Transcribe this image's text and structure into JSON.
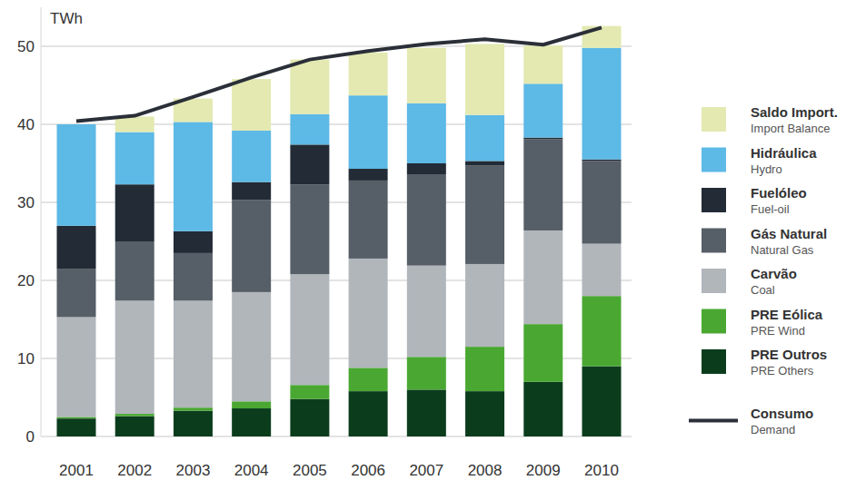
{
  "chart_data": {
    "type": "bar",
    "stacked": true,
    "grid": true,
    "legend": "right",
    "y_label": "TWh",
    "categories": [
      "2001",
      "2002",
      "2003",
      "2004",
      "2005",
      "2006",
      "2007",
      "2008",
      "2009",
      "2010"
    ],
    "ylim": [
      0,
      55
    ],
    "yticks": [
      0,
      10,
      20,
      30,
      40,
      50
    ],
    "series": [
      {
        "name": "PRE Outros",
        "name_en": "PRE Others",
        "type": "bar",
        "color": "#0b3d1d",
        "values": [
          2.3,
          2.6,
          3.3,
          3.6,
          4.8,
          5.8,
          6.0,
          5.8,
          7.0,
          9.0
        ]
      },
      {
        "name": "PRE Eólica",
        "name_en": "PRE Wind",
        "type": "bar",
        "color": "#4aa832",
        "values": [
          0.2,
          0.3,
          0.4,
          0.9,
          1.8,
          3.0,
          4.2,
          5.7,
          7.4,
          9.0
        ]
      },
      {
        "name": "Carvão",
        "name_en": "Coal",
        "type": "bar",
        "color": "#b1b6bb",
        "values": [
          12.8,
          14.5,
          13.7,
          14.0,
          14.2,
          14.0,
          11.7,
          10.6,
          12.0,
          6.7
        ]
      },
      {
        "name": "Gás Natural",
        "name_en": "Natural Gas",
        "type": "bar",
        "color": "#565e67",
        "values": [
          6.2,
          7.6,
          6.1,
          11.8,
          11.5,
          10.0,
          11.7,
          12.6,
          11.7,
          10.6
        ]
      },
      {
        "name": "Fuelóleo",
        "name_en": "Fuel-oil",
        "type": "bar",
        "color": "#222b36",
        "values": [
          5.5,
          7.3,
          2.8,
          2.3,
          5.1,
          1.5,
          1.4,
          0.6,
          0.2,
          0.2
        ]
      },
      {
        "name": "Hidráulica",
        "name_en": "Hydro",
        "type": "bar",
        "color": "#5db9e5",
        "values": [
          13.0,
          6.7,
          14.0,
          6.6,
          3.9,
          9.4,
          7.7,
          5.9,
          6.9,
          14.3
        ]
      },
      {
        "name": "Saldo Import.",
        "name_en": "Import Balance",
        "type": "bar",
        "color": "#e3e9b1",
        "values": [
          0,
          2.0,
          3.0,
          6.6,
          7.0,
          5.5,
          7.1,
          9.1,
          4.9,
          2.8
        ]
      },
      {
        "name": "Consumo",
        "name_en": "Demand",
        "type": "line",
        "color": "#2a2f38",
        "values": [
          40.4,
          41.1,
          43.5,
          46.0,
          48.3,
          49.4,
          50.3,
          50.9,
          50.2,
          52.4
        ]
      }
    ]
  }
}
